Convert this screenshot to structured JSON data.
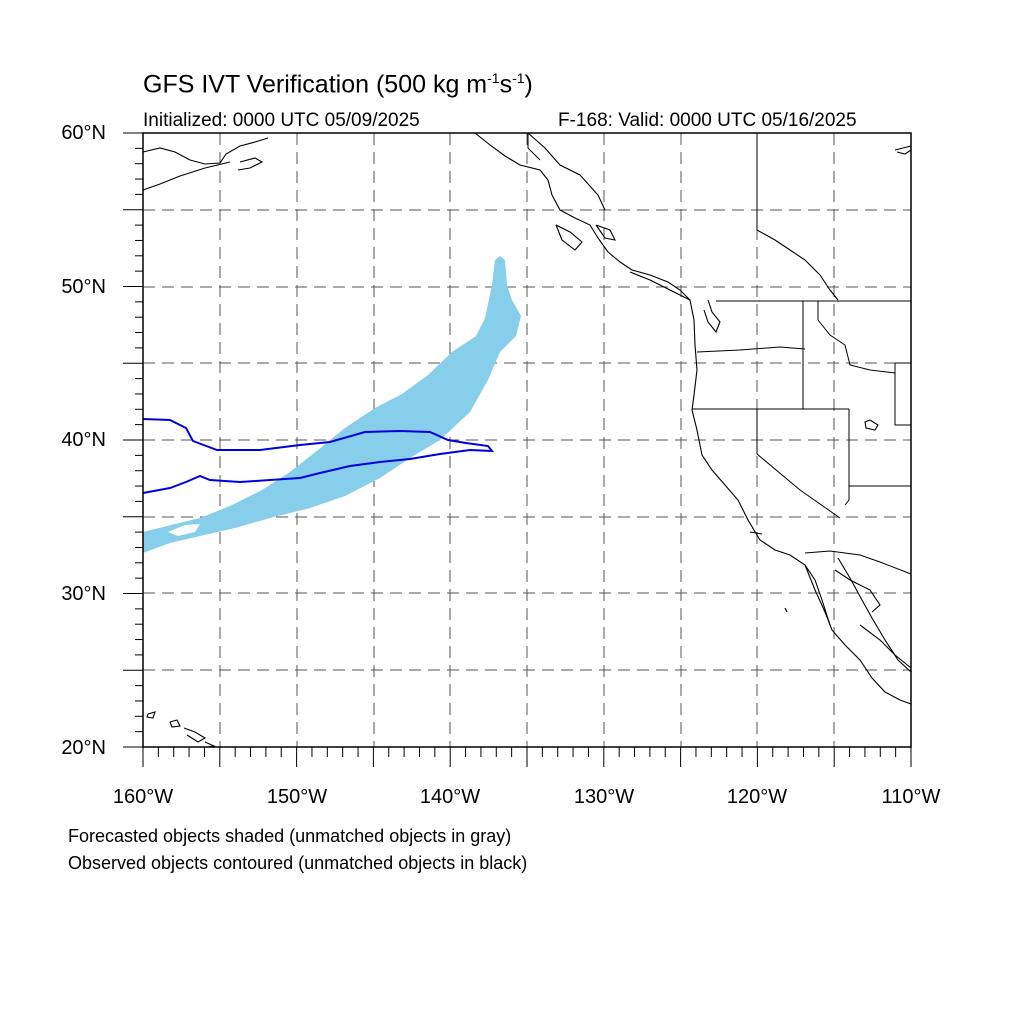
{
  "header": {
    "title": "GFS IVT Verification (500 kg m",
    "title_exp1": "-1",
    "title_mid": "s",
    "title_exp2": "-1",
    "title_end": ")",
    "initialized": "Initialized: 0000 UTC 05/09/2025",
    "valid": "F-168: Valid: 0000 UTC 05/16/2025"
  },
  "map": {
    "lon_range": [
      -160,
      -110
    ],
    "lat_range": [
      20,
      60
    ],
    "lat_labels": [
      "20°N",
      "30°N",
      "40°N",
      "50°N",
      "60°N"
    ],
    "lon_labels": [
      "160°W",
      "150°W",
      "140°W",
      "130°W",
      "120°W",
      "110°W"
    ],
    "grid": "dashed every 5 degrees",
    "colors": {
      "forecast_fill": "#87ceeb",
      "observed_contour": "#0000dd",
      "coastline": "#000000"
    }
  },
  "legend_notes": {
    "line1": "Forecasted objects shaded (unmatched objects in gray)",
    "line2": "Observed objects contoured (unmatched objects in black)"
  }
}
